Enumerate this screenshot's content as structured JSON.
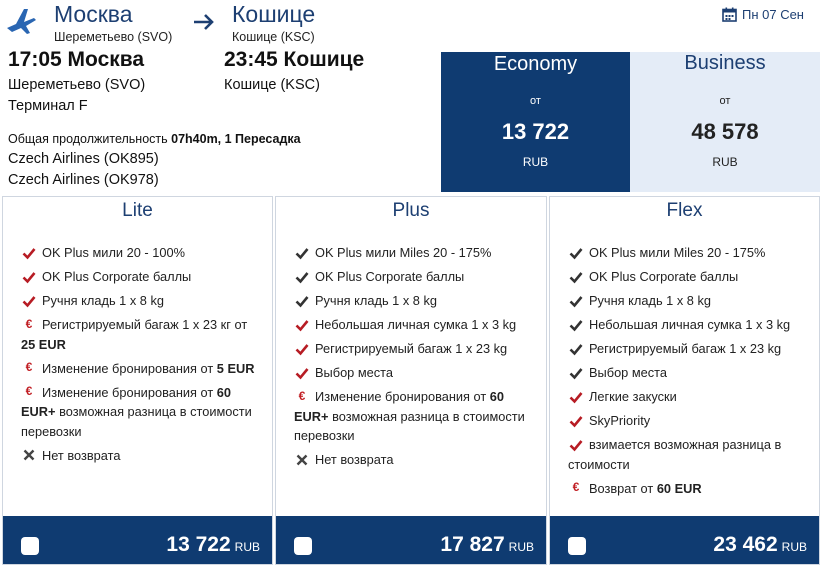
{
  "header": {
    "origin_city": "Москва",
    "origin_airport": "Шереметьево (SVO)",
    "dest_city": "Кошице",
    "dest_airport": "Кошице (KSC)",
    "date": "Пн 07 Сен"
  },
  "flight": {
    "depart": "17:05 Москва",
    "depart_airport": "Шереметьево (SVO)",
    "terminal": "Терминал F",
    "arrive": "23:45 Кошице",
    "arrive_airport": "Кошице (KSC)",
    "duration_label": "Общая продолжительность",
    "duration_value": "07h40m, 1 Пересадка",
    "carrier1": "Czech Airlines (OK895)",
    "carrier2": "Czech Airlines (OK978)"
  },
  "classes": {
    "economy": {
      "name": "Economy",
      "from": "от",
      "price": "13 722",
      "currency": "RUB"
    },
    "business": {
      "name": "Business",
      "from": "от",
      "price": "48 578",
      "currency": "RUB"
    }
  },
  "fares": [
    {
      "name": "Lite",
      "price": "13 722",
      "currency": "RUB",
      "features": [
        {
          "icon": "check-icon",
          "text": "OK Plus мили 20 - 100%"
        },
        {
          "icon": "check-icon",
          "text": "OK Plus Corporate баллы"
        },
        {
          "icon": "check-icon",
          "text": "Ручня кладь 1 x 8 kg"
        },
        {
          "icon": "euro-icon",
          "text": "Регистрируемый багаж 1 x 23 кг от",
          "bold": "25 EUR",
          "wrap": true
        },
        {
          "icon": "euro-icon",
          "text": "Изменение бронирования от",
          "bold": "5 EUR"
        },
        {
          "icon": "euro-icon",
          "text": "Изменение бронирования от",
          "bold": "60 EUR+",
          "tail": "возможная разница в стоимости перевозки",
          "wrap": true
        },
        {
          "icon": "cross-icon",
          "text": "Нет возврата"
        }
      ]
    },
    {
      "name": "Plus",
      "price": "17 827",
      "currency": "RUB",
      "features": [
        {
          "icon": "check-dark-icon",
          "text": "OK Plus мили Miles 20 - 175%"
        },
        {
          "icon": "check-dark-icon",
          "text": "OK Plus Corporate баллы"
        },
        {
          "icon": "check-dark-icon",
          "text": "Ручня кладь 1 x 8 kg"
        },
        {
          "icon": "check-icon",
          "text": "Небольшая личная сумка 1 x 3 kg"
        },
        {
          "icon": "check-icon",
          "text": "Регистрируемый багаж 1 x 23 kg"
        },
        {
          "icon": "check-icon",
          "text": "Выбор места"
        },
        {
          "icon": "euro-icon",
          "text": "Изменение бронирования от",
          "bold": "60 EUR+",
          "tail": "возможная разница в стоимости перевозки",
          "wrap": true
        },
        {
          "icon": "cross-icon",
          "text": "Нет возврата"
        }
      ]
    },
    {
      "name": "Flex",
      "price": "23 462",
      "currency": "RUB",
      "features": [
        {
          "icon": "check-dark-icon",
          "text": "OK Plus мили Miles 20 - 175%"
        },
        {
          "icon": "check-dark-icon",
          "text": "OK Plus Corporate баллы"
        },
        {
          "icon": "check-dark-icon",
          "text": "Ручня кладь 1 x 8 kg"
        },
        {
          "icon": "check-dark-icon",
          "text": "Небольшая личная сумка 1 x 3 kg"
        },
        {
          "icon": "check-dark-icon",
          "text": "Регистрируемый багаж 1 x 23 kg"
        },
        {
          "icon": "check-dark-icon",
          "text": "Выбор места"
        },
        {
          "icon": "check-icon",
          "text": "Легкие закуски"
        },
        {
          "icon": "check-icon",
          "text": "SkyPriority"
        },
        {
          "icon": "check-icon",
          "text": "взимается возможная разница в стоимости",
          "wrap": true
        },
        {
          "icon": "euro-icon",
          "text": "Возврат от",
          "bold": "60 EUR"
        }
      ]
    }
  ],
  "colors": {
    "navy": "#0f3b71",
    "accent_red": "#c11f24",
    "light_blue": "#e4ecf7"
  }
}
